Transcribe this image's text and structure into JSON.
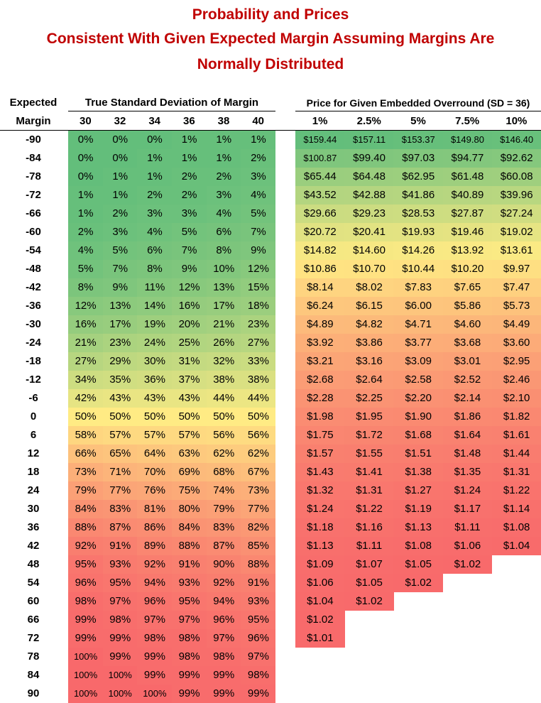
{
  "title": {
    "line1": "Probability and Prices",
    "line2": "Consistent With Given Expected Margin Assuming Margins Are",
    "line3": "Normally Distributed"
  },
  "header": {
    "expected": "Expected",
    "margin": "Margin",
    "left_group": "True Standard Deviation of Margin",
    "right_group": "Price for Given Embedded Overround (SD = 36)",
    "sd_columns": [
      "30",
      "32",
      "34",
      "36",
      "38",
      "40"
    ],
    "overround_columns": [
      "1%",
      "2.5%",
      "5%",
      "7.5%",
      "10%"
    ]
  },
  "margins": [
    "-90",
    "-84",
    "-78",
    "-72",
    "-66",
    "-60",
    "-54",
    "-48",
    "-42",
    "-36",
    "-30",
    "-24",
    "-18",
    "-12",
    "-6",
    "0",
    "6",
    "12",
    "18",
    "24",
    "30",
    "36",
    "42",
    "48",
    "54",
    "60",
    "66",
    "72",
    "78",
    "84",
    "90"
  ],
  "probabilities": [
    [
      "0%",
      "0%",
      "0%",
      "1%",
      "1%",
      "1%"
    ],
    [
      "0%",
      "0%",
      "1%",
      "1%",
      "1%",
      "2%"
    ],
    [
      "0%",
      "1%",
      "1%",
      "2%",
      "2%",
      "3%"
    ],
    [
      "1%",
      "1%",
      "2%",
      "2%",
      "3%",
      "4%"
    ],
    [
      "1%",
      "2%",
      "3%",
      "3%",
      "4%",
      "5%"
    ],
    [
      "2%",
      "3%",
      "4%",
      "5%",
      "6%",
      "7%"
    ],
    [
      "4%",
      "5%",
      "6%",
      "7%",
      "8%",
      "9%"
    ],
    [
      "5%",
      "7%",
      "8%",
      "9%",
      "10%",
      "12%"
    ],
    [
      "8%",
      "9%",
      "11%",
      "12%",
      "13%",
      "15%"
    ],
    [
      "12%",
      "13%",
      "14%",
      "16%",
      "17%",
      "18%"
    ],
    [
      "16%",
      "17%",
      "19%",
      "20%",
      "21%",
      "23%"
    ],
    [
      "21%",
      "23%",
      "24%",
      "25%",
      "26%",
      "27%"
    ],
    [
      "27%",
      "29%",
      "30%",
      "31%",
      "32%",
      "33%"
    ],
    [
      "34%",
      "35%",
      "36%",
      "37%",
      "38%",
      "38%"
    ],
    [
      "42%",
      "43%",
      "43%",
      "43%",
      "44%",
      "44%"
    ],
    [
      "50%",
      "50%",
      "50%",
      "50%",
      "50%",
      "50%"
    ],
    [
      "58%",
      "57%",
      "57%",
      "57%",
      "56%",
      "56%"
    ],
    [
      "66%",
      "65%",
      "64%",
      "63%",
      "62%",
      "62%"
    ],
    [
      "73%",
      "71%",
      "70%",
      "69%",
      "68%",
      "67%"
    ],
    [
      "79%",
      "77%",
      "76%",
      "75%",
      "74%",
      "73%"
    ],
    [
      "84%",
      "83%",
      "81%",
      "80%",
      "79%",
      "77%"
    ],
    [
      "88%",
      "87%",
      "86%",
      "84%",
      "83%",
      "82%"
    ],
    [
      "92%",
      "91%",
      "89%",
      "88%",
      "87%",
      "85%"
    ],
    [
      "95%",
      "93%",
      "92%",
      "91%",
      "90%",
      "88%"
    ],
    [
      "96%",
      "95%",
      "94%",
      "93%",
      "92%",
      "91%"
    ],
    [
      "98%",
      "97%",
      "96%",
      "95%",
      "94%",
      "93%"
    ],
    [
      "99%",
      "98%",
      "97%",
      "97%",
      "96%",
      "95%"
    ],
    [
      "99%",
      "99%",
      "98%",
      "98%",
      "97%",
      "96%"
    ],
    [
      "100%",
      "99%",
      "99%",
      "98%",
      "98%",
      "97%"
    ],
    [
      "100%",
      "100%",
      "99%",
      "99%",
      "99%",
      "98%"
    ],
    [
      "100%",
      "100%",
      "100%",
      "99%",
      "99%",
      "99%"
    ]
  ],
  "prices": [
    [
      "$159.44",
      "$157.11",
      "$153.37",
      "$149.80",
      "$146.40"
    ],
    [
      "$100.87",
      "$99.40",
      "$97.03",
      "$94.77",
      "$92.62"
    ],
    [
      "$65.44",
      "$64.48",
      "$62.95",
      "$61.48",
      "$60.08"
    ],
    [
      "$43.52",
      "$42.88",
      "$41.86",
      "$40.89",
      "$39.96"
    ],
    [
      "$29.66",
      "$29.23",
      "$28.53",
      "$27.87",
      "$27.24"
    ],
    [
      "$20.72",
      "$20.41",
      "$19.93",
      "$19.46",
      "$19.02"
    ],
    [
      "$14.82",
      "$14.60",
      "$14.26",
      "$13.92",
      "$13.61"
    ],
    [
      "$10.86",
      "$10.70",
      "$10.44",
      "$10.20",
      "$9.97"
    ],
    [
      "$8.14",
      "$8.02",
      "$7.83",
      "$7.65",
      "$7.47"
    ],
    [
      "$6.24",
      "$6.15",
      "$6.00",
      "$5.86",
      "$5.73"
    ],
    [
      "$4.89",
      "$4.82",
      "$4.71",
      "$4.60",
      "$4.49"
    ],
    [
      "$3.92",
      "$3.86",
      "$3.77",
      "$3.68",
      "$3.60"
    ],
    [
      "$3.21",
      "$3.16",
      "$3.09",
      "$3.01",
      "$2.95"
    ],
    [
      "$2.68",
      "$2.64",
      "$2.58",
      "$2.52",
      "$2.46"
    ],
    [
      "$2.28",
      "$2.25",
      "$2.20",
      "$2.14",
      "$2.10"
    ],
    [
      "$1.98",
      "$1.95",
      "$1.90",
      "$1.86",
      "$1.82"
    ],
    [
      "$1.75",
      "$1.72",
      "$1.68",
      "$1.64",
      "$1.61"
    ],
    [
      "$1.57",
      "$1.55",
      "$1.51",
      "$1.48",
      "$1.44"
    ],
    [
      "$1.43",
      "$1.41",
      "$1.38",
      "$1.35",
      "$1.31"
    ],
    [
      "$1.32",
      "$1.31",
      "$1.27",
      "$1.24",
      "$1.22"
    ],
    [
      "$1.24",
      "$1.22",
      "$1.19",
      "$1.17",
      "$1.14"
    ],
    [
      "$1.18",
      "$1.16",
      "$1.13",
      "$1.11",
      "$1.08"
    ],
    [
      "$1.13",
      "$1.11",
      "$1.08",
      "$1.06",
      "$1.04"
    ],
    [
      "$1.09",
      "$1.07",
      "$1.05",
      "$1.02"
    ],
    [
      "$1.06",
      "$1.05",
      "$1.02"
    ],
    [
      "$1.04",
      "$1.02"
    ],
    [
      "$1.02"
    ],
    [
      "$1.01"
    ],
    [],
    [],
    []
  ],
  "colors": {
    "green": "#63be7b",
    "yellow": "#ffeb84",
    "red": "#f8696b",
    "title": "#c00000"
  }
}
